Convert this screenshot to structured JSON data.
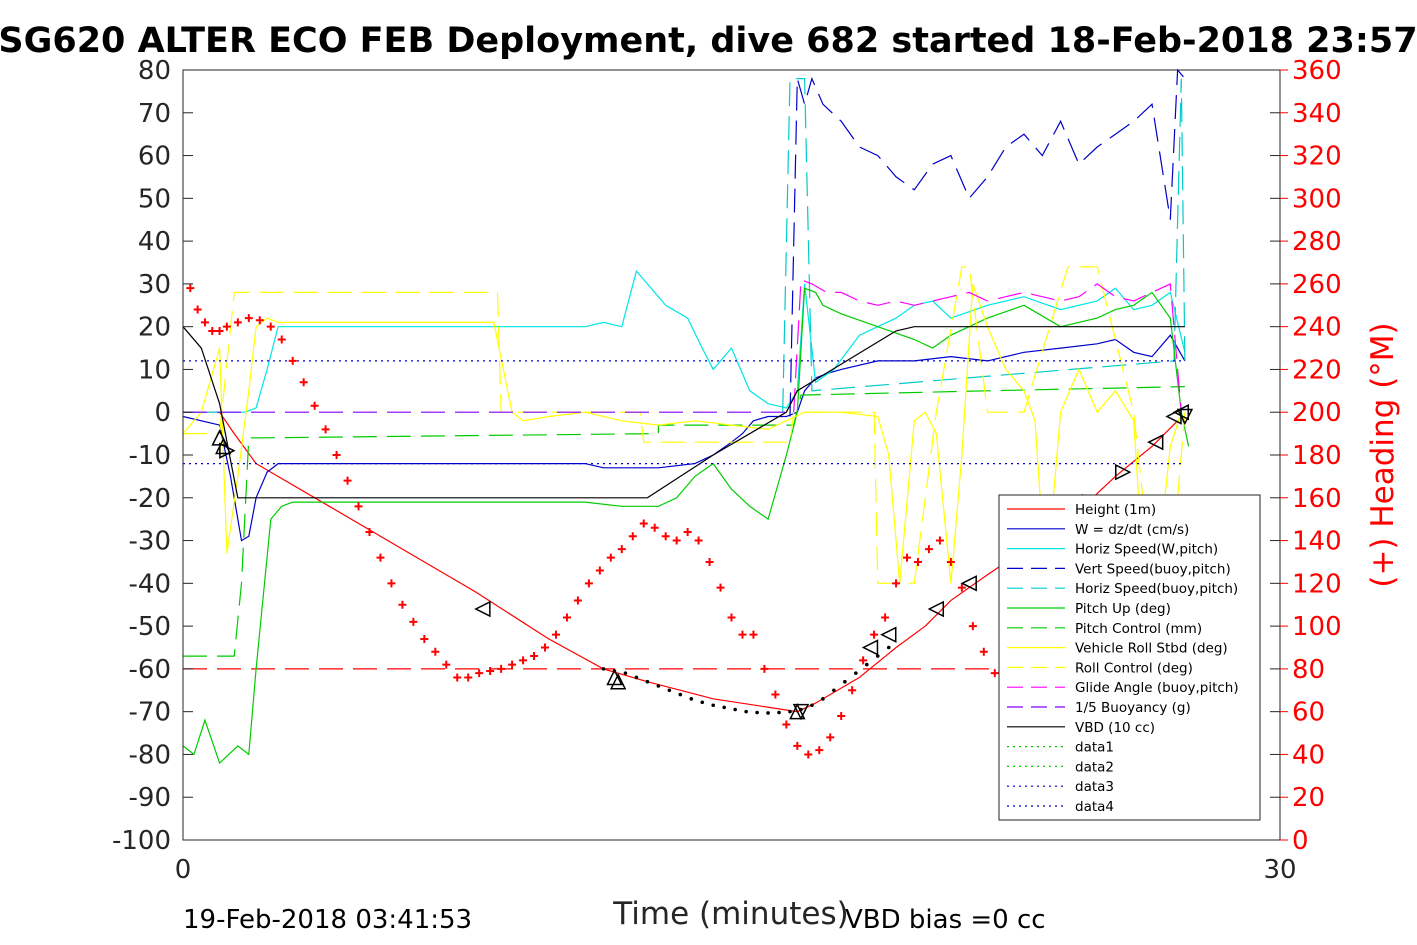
{
  "chart_data": {
    "type": "line",
    "title": "SG620 ALTER ECO FEB Deployment, dive 682 started 18-Feb-2018 23:57",
    "xlabel": "Time (minutes)",
    "ylabel_right": "(+) Heading (°M)",
    "xlim": [
      0,
      30
    ],
    "ylim": [
      -100,
      80
    ],
    "ylim_right": [
      0,
      360
    ],
    "x_ticks": [
      "0",
      "30"
    ],
    "y_ticks": [
      "80",
      "70",
      "60",
      "50",
      "40",
      "30",
      "20",
      "10",
      "0",
      "-10",
      "-20",
      "-30",
      "-40",
      "-50",
      "-60",
      "-70",
      "-80",
      "-90",
      "-100"
    ],
    "y_right_ticks": [
      "360",
      "340",
      "320",
      "300",
      "280",
      "260",
      "240",
      "220",
      "200",
      "180",
      "160",
      "140",
      "120",
      "100",
      "80",
      "60",
      "40",
      "20",
      "0"
    ],
    "footer_left": "19-Feb-2018 03:41:53",
    "footer_right": "VBD bias =0 cc",
    "legend_position": "lower-right",
    "series": [
      {
        "name": "Height (1m)",
        "color": "#ff0000",
        "style": "solid",
        "x": [
          0,
          1.0,
          1.4,
          2.0,
          4.0,
          6.0,
          8.0,
          10.0,
          11.5,
          12.7,
          14.5,
          16.8,
          17.3,
          18.5,
          19.5,
          20.3,
          21.0,
          22.0,
          23.2,
          24.5,
          25.5,
          26.5,
          27.2
        ],
        "y": [
          0,
          0,
          -5,
          -12,
          -22,
          -32,
          -42,
          -53,
          -60,
          -63,
          -67,
          -70,
          -68,
          -62,
          -55,
          -50,
          -44,
          -38,
          -31,
          -23,
          -15,
          -8,
          -2
        ]
      },
      {
        "name": "W = dz/dt (cm/s)",
        "color": "#0000cc",
        "style": "solid",
        "x": [
          0,
          1.0,
          1.3,
          1.6,
          1.8,
          2.0,
          2.3,
          2.6,
          3.0,
          4.0,
          5.0,
          6.0,
          7.0,
          8.0,
          9.0,
          10.0,
          11.0,
          11.5,
          12.0,
          13.0,
          14.0,
          14.5,
          15.0,
          15.3,
          15.6,
          16.0,
          16.5,
          16.8,
          17.0,
          17.3,
          17.6,
          18.0,
          19.0,
          20.0,
          21.0,
          22.0,
          23.0,
          24.0,
          25.0,
          25.5,
          26.0,
          26.5,
          27.0,
          27.4
        ],
        "y": [
          -1,
          -3,
          -15,
          -30,
          -29,
          -20,
          -14,
          -12,
          -12,
          -12,
          -12,
          -12,
          -12,
          -12,
          -12,
          -12,
          -12,
          -13,
          -13,
          -13,
          -12,
          -10,
          -7,
          -5,
          -2,
          -1,
          -1,
          0,
          5,
          8,
          9,
          10,
          12,
          12,
          13,
          12,
          14,
          15,
          16,
          17,
          14,
          13,
          18,
          12
        ]
      },
      {
        "name": "Horiz Speed(W,pitch)",
        "color": "#00e5e5",
        "style": "solid",
        "x": [
          0,
          1.0,
          1.4,
          1.7,
          2.0,
          2.3,
          2.6,
          3.0,
          5.0,
          7.0,
          9.0,
          11.0,
          11.5,
          12.0,
          12.4,
          12.7,
          13.2,
          13.8,
          14.2,
          14.5,
          15.0,
          15.5,
          16.0,
          16.5,
          16.8,
          17.0,
          17.3,
          17.8,
          18.5,
          19.5,
          20.0,
          20.5,
          21.0,
          22.0,
          23.0,
          24.0,
          25.0,
          25.5,
          26.0,
          26.5,
          27.0,
          27.4
        ],
        "y": [
          0,
          0,
          0,
          0,
          1,
          10,
          20,
          20,
          20,
          20,
          20,
          20,
          21,
          20,
          33,
          30,
          25,
          22,
          15,
          10,
          15,
          5,
          2,
          1,
          5,
          30,
          7,
          10,
          18,
          22,
          25,
          26,
          22,
          25,
          27,
          24,
          26,
          29,
          24,
          25,
          28,
          14
        ]
      },
      {
        "name": "Vert Speed(buoy,pitch)",
        "color": "#0000cc",
        "style": "dashed",
        "x": [
          16.6,
          16.8,
          17.0,
          17.2,
          17.5,
          18.0,
          18.5,
          19.0,
          19.5,
          20.0,
          20.5,
          21.0,
          21.5,
          22.0,
          22.5,
          23.0,
          23.5,
          24.0,
          24.5,
          25.0,
          25.5,
          26.0,
          26.5,
          27.0,
          27.2,
          27.4
        ],
        "y": [
          -1,
          78,
          72,
          78,
          72,
          68,
          62,
          60,
          55,
          52,
          58,
          60,
          50,
          55,
          62,
          65,
          60,
          68,
          58,
          62,
          65,
          68,
          72,
          45,
          80,
          78
        ]
      },
      {
        "name": "Horiz Speed(buoy,pitch)",
        "color": "#00cccc",
        "style": "dashed",
        "x": [
          16.4,
          16.6,
          16.8,
          17.0,
          17.2,
          27.1,
          27.3,
          27.4
        ],
        "y": [
          0,
          78,
          78,
          78,
          5,
          12,
          78,
          12
        ]
      },
      {
        "name": "Pitch Up (deg)",
        "color": "#00cc00",
        "style": "solid",
        "x": [
          0,
          0.3,
          0.6,
          1.0,
          1.5,
          1.8,
          2.0,
          2.4,
          2.7,
          3.0,
          5.0,
          7.0,
          9.0,
          11.0,
          12.0,
          13.0,
          13.5,
          14.0,
          14.5,
          15.0,
          15.5,
          16.0,
          16.5,
          16.8,
          17.0,
          17.3,
          17.5,
          18.0,
          19.0,
          20.0,
          20.5,
          21.0,
          22.0,
          23.0,
          24.0,
          25.0,
          25.5,
          26.0,
          26.5,
          27.0,
          27.3,
          27.5
        ],
        "y": [
          -78,
          -80,
          -72,
          -82,
          -78,
          -80,
          -60,
          -25,
          -22,
          -21,
          -21,
          -21,
          -21,
          -21,
          -22,
          -22,
          -20,
          -15,
          -12,
          -18,
          -22,
          -25,
          -10,
          0,
          29,
          28,
          25,
          23,
          20,
          17,
          15,
          18,
          22,
          25,
          20,
          22,
          24,
          25,
          28,
          22,
          0,
          -8
        ]
      },
      {
        "name": "Pitch Control (mm)",
        "color": "#00cc00",
        "style": "dashed",
        "x": [
          0,
          1.4,
          1.6,
          1.8,
          2.0,
          13.0,
          13.0,
          16.7,
          16.9,
          22.0,
          27.4
        ],
        "y": [
          -57,
          -57,
          -40,
          -6,
          -6,
          -5,
          -3,
          -3,
          4,
          5,
          6
        ]
      },
      {
        "name": "Vehicle Roll Stbd (deg)",
        "color": "#ffff00",
        "style": "solid",
        "x": [
          0,
          0.5,
          1.0,
          1.2,
          1.5,
          1.8,
          2.0,
          2.3,
          2.6,
          3.0,
          5.0,
          7.0,
          8.5,
          9.0,
          9.3,
          10.0,
          11.0,
          12.0,
          13.0,
          14.0,
          15.0,
          16.0,
          17.0,
          18.0,
          19.0,
          19.3,
          19.6,
          20.0,
          20.3,
          20.6,
          21.0,
          21.3,
          21.6,
          22.0,
          22.5,
          23.0,
          23.3,
          23.6,
          24.0,
          24.5,
          25.0,
          25.5,
          26.0,
          26.3,
          26.6,
          27.0,
          27.3
        ],
        "y": [
          -5,
          0,
          15,
          -33,
          -15,
          5,
          20,
          22,
          21,
          21,
          21,
          21,
          21,
          0,
          -2,
          -1,
          0,
          -2,
          -3,
          -2,
          -3,
          -4,
          0,
          0,
          -1,
          -10,
          -40,
          -2,
          0,
          -5,
          -40,
          -10,
          30,
          20,
          10,
          5,
          -2,
          -40,
          0,
          10,
          0,
          5,
          -2,
          -42,
          -40,
          -8,
          0
        ]
      },
      {
        "name": "Roll Control (deg)",
        "color": "#ffff00",
        "style": "dashed",
        "x": [
          0,
          1.0,
          1.4,
          1.6,
          2.0,
          8.6,
          8.7,
          12.5,
          12.6,
          16.6,
          16.7,
          18.9,
          19.0,
          20.0,
          20.6,
          21.3,
          21.5,
          22.0,
          23.0,
          24.2,
          25.0,
          26.0,
          26.5,
          27.0,
          27.4
        ],
        "y": [
          -5,
          -5,
          28,
          28,
          28,
          28,
          0,
          0,
          -7,
          -7,
          0,
          0,
          -40,
          -40,
          0,
          34,
          34,
          0,
          0,
          34,
          34,
          0,
          -40,
          -40,
          0
        ]
      },
      {
        "name": "Glide Angle (buoy,pitch)",
        "color": "#ff00ff",
        "style": "dashed",
        "x": [
          16.7,
          16.9,
          17.2,
          17.6,
          18.0,
          18.5,
          19.0,
          19.5,
          20.0,
          20.5,
          21.0,
          21.5,
          22.0,
          22.5,
          23.0,
          23.5,
          24.0,
          24.5,
          25.0,
          25.5,
          26.0,
          26.5,
          27.0,
          27.3
        ],
        "y": [
          0,
          31,
          30,
          28,
          28,
          26,
          25,
          26,
          25,
          26,
          27,
          28,
          26,
          27,
          28,
          27,
          26,
          27,
          30,
          27,
          26,
          28,
          30,
          0
        ]
      },
      {
        "name": "1/5 Buoyancy (g)",
        "color": "#8000ff",
        "style": "dashed",
        "x": [
          0,
          16.7
        ],
        "y": [
          0,
          0
        ]
      },
      {
        "name": "VBD (10 cc)",
        "color": "#000000",
        "style": "solid",
        "x": [
          0,
          0.5,
          1.0,
          1.5,
          2.0,
          5.0,
          10.0,
          12.7,
          14.5,
          16.5,
          16.8,
          19.5,
          20.0,
          27.4
        ],
        "y": [
          20,
          15,
          2,
          -20,
          -20,
          -20,
          -20,
          -20,
          -10,
          0,
          5,
          19,
          20,
          20
        ]
      },
      {
        "name": "data1",
        "color": "#00cc00",
        "style": "dotted",
        "x": [],
        "y": []
      },
      {
        "name": "data2",
        "color": "#00cc00",
        "style": "dotted",
        "x": [],
        "y": []
      },
      {
        "name": "data3",
        "color": "#0000cc",
        "style": "dotted",
        "x": [
          0,
          27.4
        ],
        "y": [
          12,
          12
        ]
      },
      {
        "name": "data4",
        "color": "#0000cc",
        "style": "dotted",
        "x": [
          0,
          27.4
        ],
        "y": [
          -12,
          -12
        ]
      }
    ],
    "extra_lines": [
      {
        "color": "#ff0000",
        "style": "dashed",
        "x": [
          0,
          27.4
        ],
        "y": [
          -60,
          -60
        ]
      }
    ],
    "heading_points": {
      "color": "#ff0000",
      "x": [
        0.2,
        0.4,
        0.6,
        0.8,
        1.0,
        1.2,
        1.5,
        1.8,
        2.1,
        2.4,
        2.7,
        3.0,
        3.3,
        3.6,
        3.9,
        4.2,
        4.5,
        4.8,
        5.1,
        5.4,
        5.7,
        6.0,
        6.3,
        6.6,
        6.9,
        7.2,
        7.5,
        7.8,
        8.1,
        8.4,
        8.7,
        9.0,
        9.3,
        9.6,
        9.9,
        10.2,
        10.5,
        10.8,
        11.1,
        11.4,
        11.7,
        12.0,
        12.3,
        12.6,
        12.9,
        13.2,
        13.5,
        13.8,
        14.1,
        14.4,
        14.7,
        15.0,
        15.3,
        15.6,
        15.9,
        16.2,
        16.5,
        16.8,
        17.1,
        17.4,
        17.7,
        18.0,
        18.3,
        18.6,
        18.9,
        19.2,
        19.5,
        19.8,
        20.1,
        20.4,
        20.7,
        21.0,
        21.3,
        21.6,
        21.9,
        22.2,
        22.5,
        22.8,
        23.1,
        23.4,
        23.7,
        24.0,
        24.3,
        24.6,
        24.9,
        25.2,
        25.5,
        25.8,
        26.1,
        26.4,
        26.7,
        27.0,
        27.2,
        27.4
      ],
      "y": [
        258,
        248,
        242,
        238,
        238,
        240,
        242,
        244,
        243,
        240,
        234,
        224,
        214,
        203,
        192,
        180,
        168,
        156,
        144,
        132,
        120,
        110,
        102,
        94,
        88,
        82,
        76,
        76,
        78,
        79,
        80,
        82,
        84,
        86,
        90,
        96,
        104,
        112,
        120,
        126,
        132,
        136,
        142,
        148,
        146,
        142,
        140,
        144,
        140,
        130,
        118,
        104,
        96,
        96,
        80,
        68,
        54,
        44,
        40,
        42,
        48,
        58,
        70,
        84,
        96,
        104,
        120,
        132,
        130,
        136,
        140,
        130,
        118,
        100,
        88,
        78,
        70,
        62,
        56,
        52,
        48,
        44,
        56,
        66,
        78,
        88,
        100,
        122,
        130,
        136,
        134,
        128,
        70,
        44
      ]
    },
    "vbd_dots": {
      "color": "#000000",
      "x": [
        11.5,
        11.8,
        12.1,
        12.4,
        12.7,
        13.0,
        13.3,
        13.6,
        13.9,
        14.2,
        14.5,
        14.8,
        15.1,
        15.4,
        15.7,
        16.0,
        16.3,
        16.6,
        16.9,
        17.2,
        17.5,
        17.8,
        18.1,
        18.4,
        18.7,
        19.0,
        19.3
      ],
      "y": [
        -60,
        -60.5,
        -61,
        -62,
        -63,
        -64,
        -65,
        -66,
        -67,
        -67.8,
        -68.5,
        -69,
        -69.5,
        -70,
        -70.2,
        -70.3,
        -70.2,
        -70,
        -69.5,
        -68.5,
        -67,
        -65,
        -63,
        -61,
        -59,
        -57,
        -55
      ]
    },
    "triangle_markers": [
      {
        "x": 1.0,
        "y": -6,
        "dir": "up"
      },
      {
        "x": 1.1,
        "y": -8,
        "dir": "up"
      },
      {
        "x": 1.2,
        "y": -9,
        "dir": "right"
      },
      {
        "x": 8.2,
        "y": -46,
        "dir": "left"
      },
      {
        "x": 11.8,
        "y": -62,
        "dir": "up"
      },
      {
        "x": 11.9,
        "y": -63,
        "dir": "up"
      },
      {
        "x": 16.8,
        "y": -70,
        "dir": "up"
      },
      {
        "x": 16.9,
        "y": -70,
        "dir": "down"
      },
      {
        "x": 18.8,
        "y": -55,
        "dir": "left"
      },
      {
        "x": 19.3,
        "y": -52,
        "dir": "left"
      },
      {
        "x": 20.6,
        "y": -46,
        "dir": "left"
      },
      {
        "x": 21.5,
        "y": -40,
        "dir": "left"
      },
      {
        "x": 22.6,
        "y": -33,
        "dir": "right"
      },
      {
        "x": 23.7,
        "y": -28,
        "dir": "right"
      },
      {
        "x": 24.8,
        "y": -21,
        "dir": "right"
      },
      {
        "x": 25.7,
        "y": -14,
        "dir": "right"
      },
      {
        "x": 26.6,
        "y": -7,
        "dir": "left"
      },
      {
        "x": 27.1,
        "y": -1,
        "dir": "left"
      },
      {
        "x": 27.3,
        "y": 0,
        "dir": "left"
      },
      {
        "x": 27.4,
        "y": -1,
        "dir": "down"
      }
    ]
  }
}
